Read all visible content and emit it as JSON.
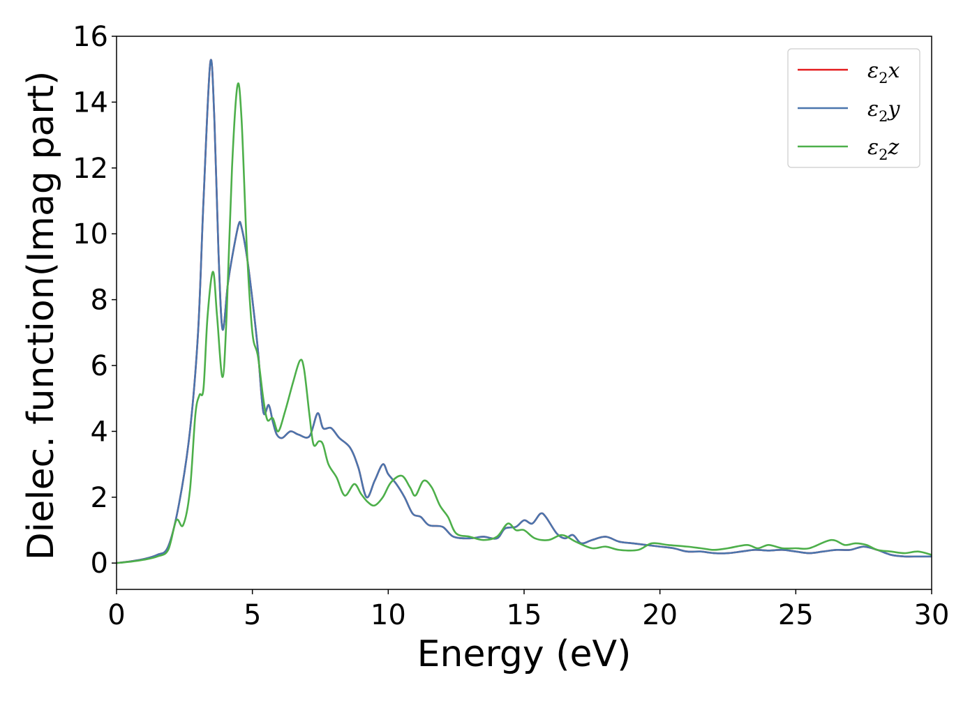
{
  "chart_data": {
    "type": "line",
    "xlabel": "Energy (eV)",
    "ylabel": "Dielec. function(Imag part)",
    "xlim": [
      0,
      30
    ],
    "ylim": [
      -0.8,
      16
    ],
    "xticks": [
      0,
      5,
      10,
      15,
      20,
      25,
      30
    ],
    "yticks": [
      0,
      2,
      4,
      6,
      8,
      10,
      12,
      14,
      16
    ],
    "grid": false,
    "legend_position": "top-right",
    "series": [
      {
        "name": "ε2x",
        "legend_main": "ε",
        "legend_sub": "2",
        "legend_var": "x",
        "color": "#e41a1c",
        "points": [
          [
            0,
            0
          ],
          [
            0.5,
            0.05
          ],
          [
            1.0,
            0.12
          ],
          [
            1.5,
            0.25
          ],
          [
            1.9,
            0.5
          ],
          [
            2.3,
            1.8
          ],
          [
            2.7,
            4.0
          ],
          [
            3.0,
            7.0
          ],
          [
            3.2,
            11.0
          ],
          [
            3.45,
            15.2
          ],
          [
            3.6,
            13.5
          ],
          [
            3.75,
            9.5
          ],
          [
            3.9,
            7.1
          ],
          [
            4.1,
            8.5
          ],
          [
            4.3,
            9.5
          ],
          [
            4.5,
            10.3
          ],
          [
            4.6,
            10.2
          ],
          [
            4.8,
            9.3
          ],
          [
            5.0,
            8.0
          ],
          [
            5.2,
            6.5
          ],
          [
            5.4,
            4.6
          ],
          [
            5.6,
            4.8
          ],
          [
            5.75,
            4.3
          ],
          [
            5.9,
            3.9
          ],
          [
            6.1,
            3.8
          ],
          [
            6.4,
            4.0
          ],
          [
            6.7,
            3.9
          ],
          [
            7.1,
            3.85
          ],
          [
            7.4,
            4.55
          ],
          [
            7.6,
            4.1
          ],
          [
            7.9,
            4.1
          ],
          [
            8.2,
            3.8
          ],
          [
            8.6,
            3.5
          ],
          [
            8.9,
            2.9
          ],
          [
            9.2,
            2.0
          ],
          [
            9.5,
            2.5
          ],
          [
            9.8,
            3.0
          ],
          [
            10.0,
            2.7
          ],
          [
            10.3,
            2.4
          ],
          [
            10.6,
            2.0
          ],
          [
            10.9,
            1.5
          ],
          [
            11.2,
            1.4
          ],
          [
            11.5,
            1.15
          ],
          [
            12.0,
            1.1
          ],
          [
            12.4,
            0.8
          ],
          [
            13.0,
            0.75
          ],
          [
            13.5,
            0.8
          ],
          [
            14.0,
            0.75
          ],
          [
            14.3,
            1.05
          ],
          [
            14.7,
            1.1
          ],
          [
            15.0,
            1.3
          ],
          [
            15.3,
            1.2
          ],
          [
            15.6,
            1.5
          ],
          [
            15.8,
            1.4
          ],
          [
            16.2,
            0.9
          ],
          [
            16.5,
            0.75
          ],
          [
            16.8,
            0.85
          ],
          [
            17.1,
            0.6
          ],
          [
            17.5,
            0.7
          ],
          [
            18.0,
            0.8
          ],
          [
            18.5,
            0.65
          ],
          [
            19.0,
            0.6
          ],
          [
            19.5,
            0.55
          ],
          [
            20.0,
            0.5
          ],
          [
            20.5,
            0.45
          ],
          [
            21.0,
            0.35
          ],
          [
            21.5,
            0.35
          ],
          [
            22.0,
            0.3
          ],
          [
            22.5,
            0.3
          ],
          [
            23.0,
            0.35
          ],
          [
            23.5,
            0.4
          ],
          [
            24.0,
            0.38
          ],
          [
            24.5,
            0.4
          ],
          [
            25.0,
            0.35
          ],
          [
            25.5,
            0.3
          ],
          [
            26.0,
            0.35
          ],
          [
            26.5,
            0.4
          ],
          [
            27.0,
            0.4
          ],
          [
            27.5,
            0.5
          ],
          [
            28.0,
            0.4
          ],
          [
            28.5,
            0.25
          ],
          [
            29.0,
            0.2
          ],
          [
            29.5,
            0.2
          ],
          [
            30.0,
            0.2
          ]
        ]
      },
      {
        "name": "ε2y",
        "legend_main": "ε",
        "legend_sub": "2",
        "legend_var": "y",
        "color": "#4a75ad",
        "points": [
          [
            0,
            0
          ],
          [
            0.5,
            0.05
          ],
          [
            1.0,
            0.12
          ],
          [
            1.5,
            0.25
          ],
          [
            1.9,
            0.5
          ],
          [
            2.3,
            1.8
          ],
          [
            2.7,
            4.0
          ],
          [
            3.0,
            7.0
          ],
          [
            3.2,
            11.0
          ],
          [
            3.45,
            15.2
          ],
          [
            3.6,
            13.5
          ],
          [
            3.75,
            9.5
          ],
          [
            3.9,
            7.1
          ],
          [
            4.1,
            8.5
          ],
          [
            4.3,
            9.5
          ],
          [
            4.5,
            10.3
          ],
          [
            4.6,
            10.2
          ],
          [
            4.8,
            9.3
          ],
          [
            5.0,
            8.0
          ],
          [
            5.2,
            6.5
          ],
          [
            5.4,
            4.6
          ],
          [
            5.6,
            4.8
          ],
          [
            5.75,
            4.3
          ],
          [
            5.9,
            3.9
          ],
          [
            6.1,
            3.8
          ],
          [
            6.4,
            4.0
          ],
          [
            6.7,
            3.9
          ],
          [
            7.1,
            3.85
          ],
          [
            7.4,
            4.55
          ],
          [
            7.6,
            4.1
          ],
          [
            7.9,
            4.1
          ],
          [
            8.2,
            3.8
          ],
          [
            8.6,
            3.5
          ],
          [
            8.9,
            2.9
          ],
          [
            9.2,
            2.0
          ],
          [
            9.5,
            2.5
          ],
          [
            9.8,
            3.0
          ],
          [
            10.0,
            2.7
          ],
          [
            10.3,
            2.4
          ],
          [
            10.6,
            2.0
          ],
          [
            10.9,
            1.5
          ],
          [
            11.2,
            1.4
          ],
          [
            11.5,
            1.15
          ],
          [
            12.0,
            1.1
          ],
          [
            12.4,
            0.8
          ],
          [
            13.0,
            0.75
          ],
          [
            13.5,
            0.8
          ],
          [
            14.0,
            0.75
          ],
          [
            14.3,
            1.05
          ],
          [
            14.7,
            1.1
          ],
          [
            15.0,
            1.3
          ],
          [
            15.3,
            1.2
          ],
          [
            15.6,
            1.5
          ],
          [
            15.8,
            1.4
          ],
          [
            16.2,
            0.9
          ],
          [
            16.5,
            0.75
          ],
          [
            16.8,
            0.85
          ],
          [
            17.1,
            0.6
          ],
          [
            17.5,
            0.7
          ],
          [
            18.0,
            0.8
          ],
          [
            18.5,
            0.65
          ],
          [
            19.0,
            0.6
          ],
          [
            19.5,
            0.55
          ],
          [
            20.0,
            0.5
          ],
          [
            20.5,
            0.45
          ],
          [
            21.0,
            0.35
          ],
          [
            21.5,
            0.35
          ],
          [
            22.0,
            0.3
          ],
          [
            22.5,
            0.3
          ],
          [
            23.0,
            0.35
          ],
          [
            23.5,
            0.4
          ],
          [
            24.0,
            0.38
          ],
          [
            24.5,
            0.4
          ],
          [
            25.0,
            0.35
          ],
          [
            25.5,
            0.3
          ],
          [
            26.0,
            0.35
          ],
          [
            26.5,
            0.4
          ],
          [
            27.0,
            0.4
          ],
          [
            27.5,
            0.5
          ],
          [
            28.0,
            0.4
          ],
          [
            28.5,
            0.25
          ],
          [
            29.0,
            0.2
          ],
          [
            29.5,
            0.2
          ],
          [
            30.0,
            0.2
          ]
        ]
      },
      {
        "name": "ε2z",
        "legend_main": "ε",
        "legend_sub": "2",
        "legend_var": "z",
        "color": "#4daf4a",
        "points": [
          [
            0,
            0
          ],
          [
            0.5,
            0.04
          ],
          [
            1.0,
            0.1
          ],
          [
            1.5,
            0.2
          ],
          [
            1.9,
            0.4
          ],
          [
            2.2,
            1.3
          ],
          [
            2.45,
            1.15
          ],
          [
            2.7,
            2.2
          ],
          [
            2.9,
            4.5
          ],
          [
            3.05,
            5.1
          ],
          [
            3.2,
            5.3
          ],
          [
            3.35,
            7.5
          ],
          [
            3.55,
            8.85
          ],
          [
            3.7,
            7.5
          ],
          [
            3.9,
            5.65
          ],
          [
            4.05,
            7.5
          ],
          [
            4.25,
            12.0
          ],
          [
            4.45,
            14.5
          ],
          [
            4.6,
            13.5
          ],
          [
            4.8,
            9.5
          ],
          [
            5.0,
            7.0
          ],
          [
            5.2,
            6.3
          ],
          [
            5.4,
            5.0
          ],
          [
            5.55,
            4.35
          ],
          [
            5.75,
            4.4
          ],
          [
            5.95,
            4.0
          ],
          [
            6.2,
            4.6
          ],
          [
            6.5,
            5.5
          ],
          [
            6.75,
            6.15
          ],
          [
            6.9,
            5.9
          ],
          [
            7.1,
            4.5
          ],
          [
            7.25,
            3.6
          ],
          [
            7.45,
            3.7
          ],
          [
            7.6,
            3.6
          ],
          [
            7.8,
            3.0
          ],
          [
            8.1,
            2.6
          ],
          [
            8.4,
            2.05
          ],
          [
            8.75,
            2.4
          ],
          [
            9.0,
            2.1
          ],
          [
            9.25,
            1.85
          ],
          [
            9.5,
            1.75
          ],
          [
            9.8,
            2.0
          ],
          [
            10.1,
            2.45
          ],
          [
            10.5,
            2.65
          ],
          [
            10.8,
            2.3
          ],
          [
            11.0,
            2.05
          ],
          [
            11.3,
            2.5
          ],
          [
            11.6,
            2.3
          ],
          [
            11.9,
            1.75
          ],
          [
            12.2,
            1.4
          ],
          [
            12.5,
            0.9
          ],
          [
            13.0,
            0.8
          ],
          [
            13.5,
            0.7
          ],
          [
            14.0,
            0.8
          ],
          [
            14.4,
            1.2
          ],
          [
            14.7,
            1.0
          ],
          [
            15.0,
            1.0
          ],
          [
            15.4,
            0.75
          ],
          [
            15.9,
            0.7
          ],
          [
            16.4,
            0.85
          ],
          [
            16.9,
            0.65
          ],
          [
            17.5,
            0.45
          ],
          [
            18.0,
            0.5
          ],
          [
            18.5,
            0.4
          ],
          [
            19.2,
            0.4
          ],
          [
            19.7,
            0.6
          ],
          [
            20.3,
            0.55
          ],
          [
            21.0,
            0.5
          ],
          [
            21.5,
            0.45
          ],
          [
            22.0,
            0.4
          ],
          [
            22.5,
            0.45
          ],
          [
            23.2,
            0.55
          ],
          [
            23.6,
            0.45
          ],
          [
            24.0,
            0.55
          ],
          [
            24.5,
            0.45
          ],
          [
            25.0,
            0.45
          ],
          [
            25.5,
            0.45
          ],
          [
            26.3,
            0.7
          ],
          [
            26.8,
            0.55
          ],
          [
            27.2,
            0.6
          ],
          [
            27.6,
            0.55
          ],
          [
            28.0,
            0.4
          ],
          [
            28.5,
            0.35
          ],
          [
            29.0,
            0.3
          ],
          [
            29.5,
            0.35
          ],
          [
            30.0,
            0.25
          ]
        ]
      }
    ]
  }
}
